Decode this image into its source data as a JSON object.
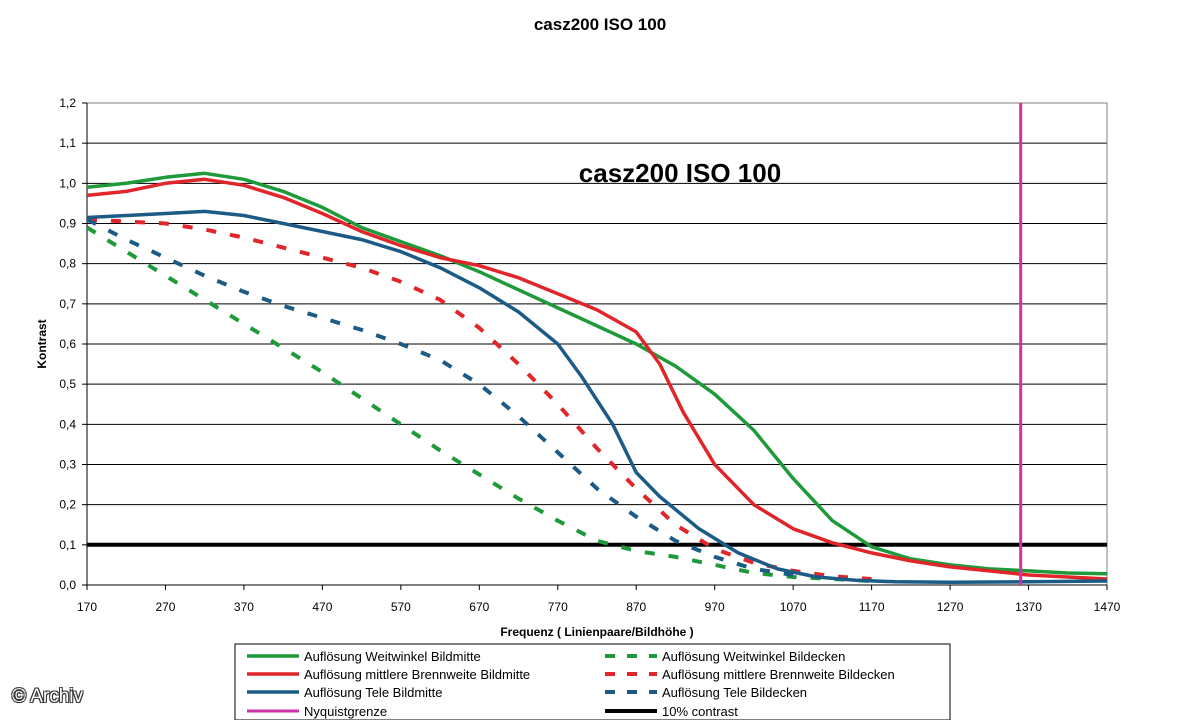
{
  "chart_data": {
    "type": "line",
    "title": "casz200 ISO 100",
    "inner_title": "casz200 ISO 100",
    "xlabel": "Frequenz ( Linienpaare/Bildhöhe )",
    "ylabel": "Kontrast",
    "xlim": [
      170,
      1470
    ],
    "ylim": [
      0,
      1.2
    ],
    "x_ticks": [
      "170",
      "270",
      "370",
      "470",
      "570",
      "670",
      "770",
      "870",
      "970",
      "1070",
      "1170",
      "1270",
      "1370",
      "1470"
    ],
    "y_ticks": [
      "0,0",
      "0,1",
      "0,2",
      "0,3",
      "0,4",
      "0,5",
      "0,6",
      "0,7",
      "0,8",
      "0,9",
      "1,0",
      "1,1",
      "1,2"
    ],
    "grid": "horizontal",
    "legend_position": "bottom",
    "series": [
      {
        "name": "Auflösung Weitwinkel Bildmitte",
        "color": "#1f9a3a",
        "style": "solid",
        "x": [
          170,
          220,
          270,
          320,
          370,
          420,
          470,
          520,
          570,
          620,
          670,
          720,
          770,
          820,
          870,
          920,
          970,
          1020,
          1070,
          1120,
          1170,
          1220,
          1270,
          1320,
          1370,
          1420,
          1470
        ],
        "y": [
          0.99,
          1.0,
          1.015,
          1.025,
          1.01,
          0.98,
          0.94,
          0.89,
          0.855,
          0.82,
          0.78,
          0.735,
          0.69,
          0.645,
          0.6,
          0.545,
          0.475,
          0.385,
          0.265,
          0.16,
          0.095,
          0.065,
          0.05,
          0.04,
          0.035,
          0.03,
          0.028
        ]
      },
      {
        "name": "Auflösung mittlere Brennweite Bildmitte",
        "color": "#e0262a",
        "style": "solid",
        "x": [
          170,
          220,
          270,
          320,
          370,
          420,
          470,
          520,
          570,
          620,
          670,
          720,
          770,
          820,
          870,
          900,
          930,
          970,
          1020,
          1070,
          1120,
          1170,
          1220,
          1270,
          1320,
          1370,
          1420,
          1470
        ],
        "y": [
          0.97,
          0.98,
          1.0,
          1.01,
          0.995,
          0.965,
          0.925,
          0.88,
          0.845,
          0.815,
          0.795,
          0.765,
          0.725,
          0.685,
          0.63,
          0.55,
          0.43,
          0.3,
          0.2,
          0.14,
          0.105,
          0.08,
          0.06,
          0.045,
          0.035,
          0.025,
          0.02,
          0.015
        ]
      },
      {
        "name": "Auflösung Tele Bildmitte",
        "color": "#1b5b86",
        "style": "solid",
        "x": [
          170,
          220,
          270,
          320,
          370,
          420,
          470,
          520,
          570,
          620,
          670,
          720,
          770,
          800,
          840,
          870,
          900,
          950,
          1000,
          1050,
          1100,
          1150,
          1200,
          1270,
          1370,
          1470
        ],
        "y": [
          0.915,
          0.92,
          0.925,
          0.93,
          0.92,
          0.9,
          0.88,
          0.86,
          0.83,
          0.79,
          0.74,
          0.68,
          0.6,
          0.52,
          0.4,
          0.28,
          0.22,
          0.14,
          0.08,
          0.04,
          0.02,
          0.012,
          0.008,
          0.007,
          0.008,
          0.01
        ]
      },
      {
        "name": "Auflösung Weitwinkel Bildecken",
        "color": "#1f9a3a",
        "style": "dashed",
        "x": [
          170,
          220,
          270,
          320,
          370,
          420,
          470,
          520,
          570,
          620,
          670,
          720,
          770,
          820,
          870,
          920,
          970,
          1020,
          1070,
          1120,
          1170
        ],
        "y": [
          0.89,
          0.83,
          0.77,
          0.71,
          0.65,
          0.59,
          0.53,
          0.465,
          0.4,
          0.335,
          0.275,
          0.215,
          0.16,
          0.11,
          0.085,
          0.07,
          0.05,
          0.03,
          0.02,
          0.015,
          0.01
        ]
      },
      {
        "name": "Auflösung mittlere Brennweite Bildecken",
        "color": "#e0262a",
        "style": "dashed",
        "x": [
          170,
          220,
          270,
          320,
          370,
          420,
          470,
          520,
          570,
          620,
          670,
          720,
          770,
          820,
          870,
          920,
          970,
          1020,
          1070,
          1120,
          1170
        ],
        "y": [
          0.91,
          0.905,
          0.9,
          0.885,
          0.865,
          0.84,
          0.815,
          0.79,
          0.755,
          0.71,
          0.64,
          0.55,
          0.45,
          0.34,
          0.24,
          0.15,
          0.09,
          0.055,
          0.035,
          0.022,
          0.015
        ]
      },
      {
        "name": "Auflösung Tele Bildecken",
        "color": "#1b5b86",
        "style": "dashed",
        "x": [
          170,
          220,
          270,
          320,
          370,
          420,
          470,
          520,
          570,
          620,
          670,
          720,
          770,
          820,
          870,
          920,
          970,
          1020,
          1070
        ],
        "y": [
          0.91,
          0.86,
          0.815,
          0.77,
          0.73,
          0.695,
          0.665,
          0.635,
          0.6,
          0.56,
          0.5,
          0.42,
          0.33,
          0.24,
          0.17,
          0.11,
          0.07,
          0.04,
          0.025
        ]
      },
      {
        "name": "Nyquistgrenze",
        "color": "#cc33aa",
        "style": "vertical",
        "x": [
          1360,
          1360
        ],
        "y": [
          0,
          1.2
        ]
      },
      {
        "name": "10% contrast",
        "color": "#000000",
        "style": "solid-bold",
        "x": [
          170,
          1470
        ],
        "y": [
          0.1,
          0.1
        ]
      }
    ]
  },
  "watermark": "© Archiv"
}
